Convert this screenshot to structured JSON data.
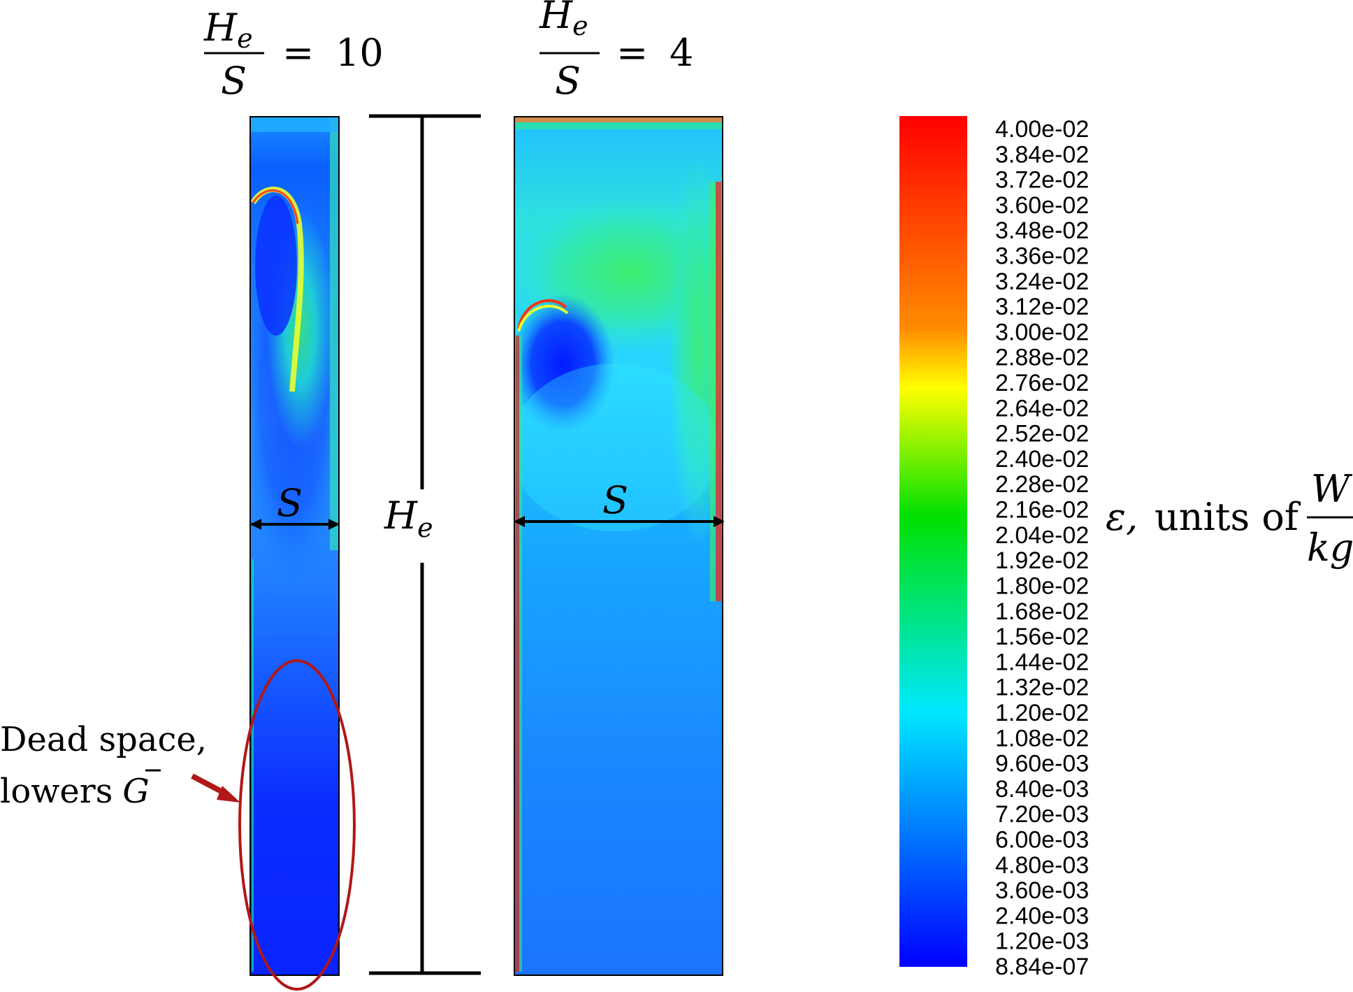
{
  "panels": [
    {
      "id": "ratio10",
      "ratio_value": "10"
    },
    {
      "id": "ratio4",
      "ratio_value": "4"
    }
  ],
  "labels": {
    "He_main": "H",
    "He_sub": "e",
    "S": "S",
    "equals": "=",
    "dead_space_line1": "Dead space,",
    "dead_space_line2": "lowers",
    "dead_space_symbol": "G"
  },
  "colorbar": {
    "ticks": [
      "4.00e-02",
      "3.84e-02",
      "3.72e-02",
      "3.60e-02",
      "3.48e-02",
      "3.36e-02",
      "3.24e-02",
      "3.12e-02",
      "3.00e-02",
      "2.88e-02",
      "2.76e-02",
      "2.64e-02",
      "2.52e-02",
      "2.40e-02",
      "2.28e-02",
      "2.16e-02",
      "2.04e-02",
      "1.92e-02",
      "1.80e-02",
      "1.68e-02",
      "1.56e-02",
      "1.44e-02",
      "1.32e-02",
      "1.20e-02",
      "1.08e-02",
      "9.60e-03",
      "8.40e-03",
      "7.20e-03",
      "6.00e-03",
      "4.80e-03",
      "3.60e-03",
      "2.40e-03",
      "1.20e-03",
      "8.84e-07"
    ],
    "label_symbol": "ε,",
    "label_text": "units of",
    "units_num": "W",
    "units_den": "kg"
  },
  "colors": {
    "annotation": "#b01818",
    "cb_red": "#ff0000",
    "cb_orange": "#ff8c00",
    "cb_yellow": "#ffff00",
    "cb_green": "#00e000",
    "cb_cyan": "#00e8ff",
    "cb_blue": "#0000ff"
  }
}
